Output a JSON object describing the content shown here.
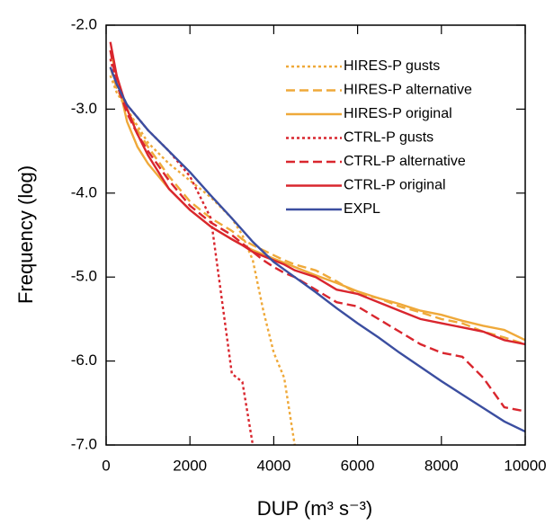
{
  "chart_data": {
    "type": "line",
    "x_label": "DUP (m³ s⁻³)",
    "y_label": "Frequency (log)",
    "x": [
      100,
      250,
      500,
      750,
      1000,
      1500,
      2000,
      2500,
      3000,
      3250,
      3500,
      3750,
      4000,
      4250,
      4500,
      5000,
      5500,
      6000,
      6500,
      7000,
      7500,
      8000,
      8500,
      9000,
      9500,
      10000
    ],
    "series": [
      {
        "name": "HIRES-P gusts",
        "color": "#efa93a",
        "dash": "dotted",
        "values": [
          -2.6,
          -2.8,
          -3.0,
          -3.2,
          -3.4,
          -3.65,
          -3.85,
          -4.05,
          -4.3,
          -4.5,
          -4.8,
          -5.4,
          -5.9,
          -6.2,
          -7.0,
          null,
          null,
          null,
          null,
          null,
          null,
          null,
          null,
          null,
          null,
          null
        ]
      },
      {
        "name": "HIRES-P alternative",
        "color": "#efa93a",
        "dash": "dashed",
        "values": [
          -2.5,
          -2.75,
          -3.0,
          -3.25,
          -3.45,
          -3.8,
          -4.1,
          -4.3,
          -4.45,
          -4.55,
          -4.62,
          -4.68,
          -4.74,
          -4.8,
          -4.85,
          -4.92,
          -5.05,
          -5.2,
          -5.25,
          -5.35,
          -5.42,
          -5.5,
          -5.55,
          -5.65,
          -5.72,
          -5.8
        ]
      },
      {
        "name": "HIRES-P original",
        "color": "#efa93a",
        "dash": "solid",
        "values": [
          -2.3,
          -2.6,
          -3.15,
          -3.45,
          -3.65,
          -3.95,
          -4.2,
          -4.4,
          -4.55,
          -4.62,
          -4.68,
          -4.73,
          -4.78,
          -4.83,
          -4.88,
          -4.98,
          -5.07,
          -5.17,
          -5.25,
          -5.32,
          -5.4,
          -5.45,
          -5.52,
          -5.58,
          -5.63,
          -5.75
        ]
      },
      {
        "name": "CTRL-P gusts",
        "color": "#d9262e",
        "dash": "dotted",
        "values": [
          -2.4,
          -2.7,
          -2.95,
          -3.1,
          -3.25,
          -3.5,
          -3.8,
          -4.3,
          -6.15,
          -6.25,
          -7.0,
          null,
          null,
          null,
          null,
          null,
          null,
          null,
          null,
          null,
          null,
          null,
          null,
          null,
          null,
          null
        ]
      },
      {
        "name": "CTRL-P alternative",
        "color": "#d9262e",
        "dash": "dashed",
        "values": [
          -2.3,
          -2.7,
          -3.05,
          -3.3,
          -3.5,
          -3.85,
          -4.15,
          -4.35,
          -4.5,
          -4.6,
          -4.7,
          -4.8,
          -4.88,
          -4.95,
          -5.0,
          -5.15,
          -5.3,
          -5.35,
          -5.5,
          -5.65,
          -5.8,
          -5.9,
          -5.95,
          -6.2,
          -6.55,
          -6.6
        ]
      },
      {
        "name": "CTRL-P original",
        "color": "#d9262e",
        "dash": "solid",
        "values": [
          -2.2,
          -2.6,
          -3.0,
          -3.3,
          -3.55,
          -3.95,
          -4.2,
          -4.4,
          -4.55,
          -4.62,
          -4.7,
          -4.75,
          -4.8,
          -4.85,
          -4.92,
          -5.0,
          -5.15,
          -5.2,
          -5.3,
          -5.4,
          -5.5,
          -5.55,
          -5.6,
          -5.65,
          -5.75,
          -5.8
        ]
      },
      {
        "name": "EXPL",
        "color": "#3b4ea0",
        "dash": "solid",
        "values": [
          -2.5,
          -2.7,
          -2.95,
          -3.1,
          -3.25,
          -3.5,
          -3.75,
          -4.03,
          -4.3,
          -4.44,
          -4.58,
          -4.7,
          -4.82,
          -4.91,
          -5.0,
          -5.18,
          -5.37,
          -5.55,
          -5.72,
          -5.9,
          -6.07,
          -6.24,
          -6.4,
          -6.56,
          -6.72,
          -6.84
        ]
      }
    ],
    "xlim": [
      0,
      10000
    ],
    "xticks": [
      0,
      2000,
      4000,
      6000,
      8000,
      10000
    ],
    "ylim": [
      -7,
      -2
    ],
    "yticks": [
      {
        "value": -2,
        "label": "-2.0"
      },
      {
        "value": -3,
        "label": "-3.0"
      },
      {
        "value": -4,
        "label": "-4.0"
      },
      {
        "value": -5,
        "label": "-5.0"
      },
      {
        "value": -6,
        "label": "-6.0"
      },
      {
        "value": -7,
        "label": "-7.0"
      }
    ],
    "legend": "upper right",
    "grid": false
  }
}
